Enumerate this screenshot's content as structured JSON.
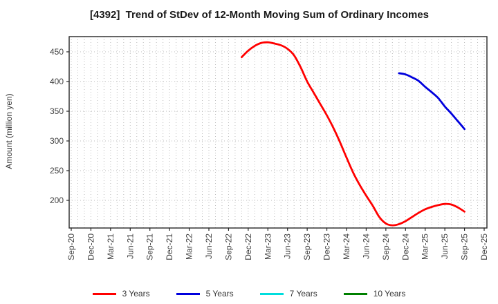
{
  "title": "[4392]  Trend of StDev of 12-Month Moving Sum of Ordinary Incomes",
  "chart_data": {
    "type": "line",
    "title": "[4392]  Trend of StDev of 12-Month Moving Sum of Ordinary Incomes",
    "xlabel": "",
    "ylabel": "Amount (million yen)",
    "y_ticks": [
      200,
      250,
      300,
      350,
      400,
      450
    ],
    "ylim": [
      152,
      476
    ],
    "x_axis_start_month": "Sep-20",
    "x_axis_total_months": 64,
    "x_tick_labels": [
      "Sep-20",
      "Dec-20",
      "Mar-21",
      "Jun-21",
      "Sep-21",
      "Dec-21",
      "Mar-22",
      "Jun-22",
      "Sep-22",
      "Dec-22",
      "Mar-23",
      "Jun-23",
      "Sep-23",
      "Dec-23",
      "Mar-24",
      "Jun-24",
      "Sep-24",
      "Dec-24",
      "Mar-25",
      "Jun-25",
      "Sep-25",
      "Dec-25"
    ],
    "grid": "dotted gray, monthly vertical + 50-step horizontal",
    "legend_position": "bottom center",
    "series": [
      {
        "name": "3 Years",
        "color": "#ff0000",
        "start_month": "Nov-22",
        "start_month_index": 26,
        "month_labels": [
          "Nov-22",
          "Dec-22",
          "Jan-23",
          "Feb-23",
          "Mar-23",
          "Apr-23",
          "May-23",
          "Jun-23",
          "Jul-23",
          "Aug-23",
          "Sep-23",
          "Oct-23",
          "Nov-23",
          "Dec-23",
          "Jan-24",
          "Feb-24",
          "Mar-24",
          "Apr-24",
          "May-24",
          "Jun-24",
          "Jul-24",
          "Aug-24",
          "Sep-24",
          "Oct-24",
          "Nov-24",
          "Dec-24",
          "Jan-25",
          "Feb-25",
          "Mar-25",
          "Apr-25",
          "May-25",
          "Jun-25",
          "Jul-25",
          "Aug-25",
          "Sep-25"
        ],
        "values": [
          441,
          452,
          460,
          465,
          466,
          464,
          461,
          455,
          444,
          424,
          400,
          381,
          362,
          343,
          322,
          298,
          272,
          247,
          226,
          208,
          191,
          172,
          161,
          158,
          160,
          165,
          172,
          179,
          185,
          189,
          192,
          194,
          193,
          188,
          181
        ]
      },
      {
        "name": "5 Years",
        "color": "#0000dd",
        "start_month": "Nov-24",
        "start_month_index": 50,
        "month_labels": [
          "Nov-24",
          "Dec-24",
          "Jan-25",
          "Feb-25",
          "Mar-25",
          "Apr-25",
          "May-25",
          "Jun-25",
          "Jul-25",
          "Aug-25",
          "Sep-25"
        ],
        "values": [
          414,
          412,
          407,
          401,
          391,
          382,
          372,
          358,
          346,
          333,
          320
        ]
      },
      {
        "name": "7 Years",
        "color": "#00dddd",
        "start_month": null,
        "start_month_index": null,
        "values": []
      },
      {
        "name": "10 Years",
        "color": "#008000",
        "start_month": null,
        "start_month_index": null,
        "values": []
      }
    ]
  },
  "legend": {
    "items": [
      {
        "label": "3 Years",
        "color": "#ff0000"
      },
      {
        "label": "5 Years",
        "color": "#0000dd"
      },
      {
        "label": "7 Years",
        "color": "#00dddd"
      },
      {
        "label": "10 Years",
        "color": "#008000"
      }
    ]
  },
  "style_colors": {
    "grid": "#bbbbbb",
    "spine": "#262626",
    "tick_label": "#404040",
    "title": "#1a1a1a"
  }
}
